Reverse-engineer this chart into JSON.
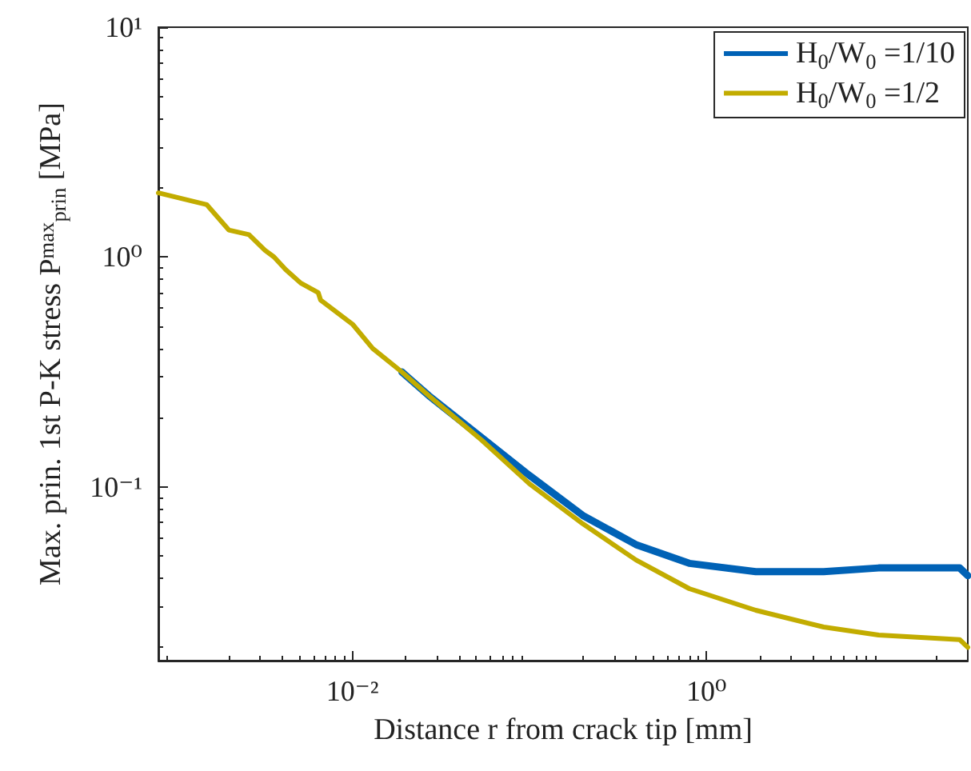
{
  "chart_data": {
    "type": "line",
    "xlabel": "Distance r from crack tip [mm]",
    "ylabel": "Max. prin. 1st P-K stress P$^{max}$$_{prin}$ [MPa]",
    "x": [
      0.0008,
      0.0015,
      0.002,
      0.0026,
      0.0032,
      0.0036,
      0.0042,
      0.0051,
      0.0064,
      0.0066,
      0.01,
      0.013,
      0.019,
      0.027,
      0.054,
      0.1,
      0.2,
      0.4,
      0.8,
      1.9,
      4.6,
      9.4,
      27,
      30
    ],
    "series": [
      {
        "name": "H$_{0}$/W$_{0}$ =1/10",
        "color": "#0062b6",
        "values": [
          null,
          null,
          null,
          null,
          null,
          null,
          null,
          null,
          null,
          null,
          null,
          null,
          0.316,
          0.249,
          0.163,
          0.112,
          0.075,
          0.056,
          0.0464,
          0.0427,
          0.0427,
          0.0443,
          0.0443,
          0.041
        ]
      },
      {
        "name": "H$_{0}$/W$_{0}$ =1/2",
        "color": "#c2ac00",
        "values": [
          1.9,
          1.69,
          1.31,
          1.25,
          1.07,
          1.0,
          0.88,
          0.77,
          0.7,
          0.65,
          0.51,
          0.4,
          0.316,
          0.249,
          0.159,
          0.103,
          0.069,
          0.048,
          0.036,
          0.029,
          0.0245,
          0.0226,
          0.0216,
          0.02
        ]
      }
    ],
    "log": "xy",
    "xlim": [
      0.0008,
      30
    ],
    "ylim": [
      0.0175,
      10
    ],
    "xticks": [
      {
        "value": 0.01,
        "label": "10⁻²"
      },
      {
        "value": 1,
        "label": "10⁰"
      }
    ],
    "yticks": [
      {
        "value": 0.1,
        "label": "10⁻¹"
      },
      {
        "value": 1,
        "label": "10⁰"
      },
      {
        "value": 10,
        "label": "10¹"
      }
    ],
    "grid": false,
    "legend": "top right",
    "marker": "none",
    "line_style": "solid"
  }
}
